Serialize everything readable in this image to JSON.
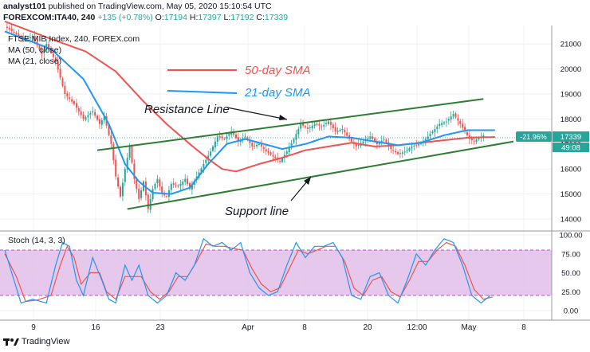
{
  "header": {
    "author": "analyst101",
    "published_text": "published on TradingView.com, May 05, 2020 15:10:54 UTC",
    "symbol": "FOREXCOM:ITA40, 240",
    "change": "+135 (+0.78%)",
    "ohlc": [
      {
        "label": "O:",
        "value": "17194"
      },
      {
        "label": "H:",
        "value": "17397"
      },
      {
        "label": "L:",
        "value": "17192"
      },
      {
        "label": "C:",
        "value": "17339"
      }
    ]
  },
  "legend": {
    "title": "FTSE MIB Index, 240, FOREX.com",
    "ma50": "MA (50, close)",
    "ma21": "MA (21, close)",
    "stoch": "Stoch (14, 3, 3)"
  },
  "annotations": {
    "sma50": "50-day SMA",
    "sma21": "21-day SMA",
    "resistance": "Resistance  Line",
    "support": "Support line"
  },
  "price_badge": {
    "pct": "-21.96%",
    "price": "17339",
    "timer": "49:08"
  },
  "colors": {
    "up": "#26a69a",
    "down": "#ef5350",
    "sma50": "#ef5350",
    "sma21": "#2196f3",
    "trendline": "#2e7d32",
    "stoch_k": "#2196f3",
    "stoch_d": "#ef5350",
    "stoch_band": "#e1bee7",
    "badge": "#26a69a"
  },
  "footer": {
    "brand": "TradingView"
  },
  "chart_data": {
    "type": "candlestick",
    "price_axis": {
      "ticks": [
        14000,
        15000,
        16000,
        17000,
        18000,
        19000,
        20000,
        21000
      ]
    },
    "stoch_axis": {
      "ticks": [
        "0.00",
        "25.00",
        "50.00",
        "75.00",
        "100.00"
      ]
    },
    "time_ticks": [
      "9",
      "16",
      "23",
      "Apr",
      "8",
      "20",
      "12:00",
      "May",
      "8"
    ],
    "price_anchors": [
      [
        0,
        21700
      ],
      [
        8,
        21200
      ],
      [
        12,
        21300
      ],
      [
        16,
        20600
      ],
      [
        18,
        21000
      ],
      [
        22,
        20300
      ],
      [
        26,
        19000
      ],
      [
        30,
        18600
      ],
      [
        34,
        18000
      ],
      [
        38,
        18300
      ],
      [
        41,
        17800
      ],
      [
        43,
        18100
      ],
      [
        46,
        17000
      ],
      [
        48,
        15700
      ],
      [
        50,
        14900
      ],
      [
        52,
        16000
      ],
      [
        54,
        16900
      ],
      [
        56,
        15600
      ],
      [
        58,
        14800
      ],
      [
        60,
        15500
      ],
      [
        62,
        14400
      ],
      [
        64,
        15200
      ],
      [
        66,
        15600
      ],
      [
        68,
        15000
      ],
      [
        70,
        14900
      ],
      [
        72,
        15400
      ],
      [
        75,
        15300
      ],
      [
        78,
        15600
      ],
      [
        80,
        15200
      ],
      [
        83,
        15700
      ],
      [
        86,
        16200
      ],
      [
        89,
        16700
      ],
      [
        92,
        17300
      ],
      [
        95,
        17200
      ],
      [
        98,
        17500
      ],
      [
        101,
        17100
      ],
      [
        104,
        17300
      ],
      [
        107,
        16900
      ],
      [
        110,
        17000
      ],
      [
        113,
        16700
      ],
      [
        116,
        16500
      ],
      [
        119,
        16300
      ],
      [
        122,
        16700
      ],
      [
        125,
        17200
      ],
      [
        128,
        17800
      ],
      [
        131,
        17600
      ],
      [
        134,
        17800
      ],
      [
        137,
        17700
      ],
      [
        140,
        17900
      ],
      [
        143,
        17500
      ],
      [
        146,
        17600
      ],
      [
        149,
        17200
      ],
      [
        152,
        16900
      ],
      [
        155,
        17100
      ],
      [
        158,
        17300
      ],
      [
        161,
        17000
      ],
      [
        164,
        17200
      ],
      [
        167,
        16800
      ],
      [
        170,
        16600
      ],
      [
        173,
        16700
      ],
      [
        176,
        16900
      ],
      [
        179,
        17000
      ],
      [
        182,
        17200
      ],
      [
        185,
        17500
      ],
      [
        188,
        17800
      ],
      [
        191,
        17900
      ],
      [
        194,
        18200
      ],
      [
        197,
        17800
      ],
      [
        199,
        17500
      ],
      [
        201,
        17200
      ],
      [
        203,
        17100
      ],
      [
        205,
        17250
      ],
      [
        207,
        17339
      ]
    ],
    "sma50_anchors": [
      [
        0,
        21900
      ],
      [
        20,
        21200
      ],
      [
        35,
        20700
      ],
      [
        48,
        19900
      ],
      [
        60,
        18700
      ],
      [
        70,
        17800
      ],
      [
        80,
        17000
      ],
      [
        88,
        16400
      ],
      [
        94,
        16000
      ],
      [
        100,
        15900
      ],
      [
        110,
        16200
      ],
      [
        120,
        16450
      ],
      [
        130,
        16750
      ],
      [
        140,
        16900
      ],
      [
        150,
        17050
      ],
      [
        160,
        16900
      ],
      [
        170,
        16950
      ],
      [
        180,
        17050
      ],
      [
        190,
        17150
      ],
      [
        200,
        17250
      ],
      [
        212,
        17280
      ]
    ],
    "sma21_anchors": [
      [
        0,
        21500
      ],
      [
        20,
        20800
      ],
      [
        34,
        19600
      ],
      [
        45,
        17800
      ],
      [
        52,
        16200
      ],
      [
        58,
        15500
      ],
      [
        64,
        15050
      ],
      [
        72,
        15000
      ],
      [
        80,
        15250
      ],
      [
        88,
        16200
      ],
      [
        96,
        17000
      ],
      [
        104,
        17200
      ],
      [
        112,
        17000
      ],
      [
        120,
        16800
      ],
      [
        130,
        17000
      ],
      [
        140,
        17300
      ],
      [
        150,
        17250
      ],
      [
        160,
        17100
      ],
      [
        170,
        16950
      ],
      [
        180,
        17050
      ],
      [
        190,
        17350
      ],
      [
        200,
        17550
      ],
      [
        212,
        17550
      ]
    ],
    "stoch_k_anchors": [
      [
        0,
        80
      ],
      [
        4,
        40
      ],
      [
        7,
        10
      ],
      [
        12,
        15
      ],
      [
        18,
        10
      ],
      [
        22,
        60
      ],
      [
        25,
        90
      ],
      [
        28,
        85
      ],
      [
        31,
        40
      ],
      [
        34,
        20
      ],
      [
        38,
        70
      ],
      [
        42,
        40
      ],
      [
        45,
        15
      ],
      [
        48,
        10
      ],
      [
        52,
        60
      ],
      [
        55,
        40
      ],
      [
        58,
        60
      ],
      [
        62,
        20
      ],
      [
        66,
        10
      ],
      [
        70,
        20
      ],
      [
        74,
        50
      ],
      [
        78,
        40
      ],
      [
        82,
        60
      ],
      [
        86,
        95
      ],
      [
        90,
        85
      ],
      [
        94,
        90
      ],
      [
        98,
        80
      ],
      [
        102,
        90
      ],
      [
        106,
        50
      ],
      [
        110,
        30
      ],
      [
        114,
        20
      ],
      [
        118,
        25
      ],
      [
        122,
        60
      ],
      [
        126,
        90
      ],
      [
        130,
        70
      ],
      [
        134,
        85
      ],
      [
        138,
        85
      ],
      [
        142,
        90
      ],
      [
        146,
        70
      ],
      [
        150,
        20
      ],
      [
        154,
        15
      ],
      [
        158,
        45
      ],
      [
        162,
        50
      ],
      [
        166,
        20
      ],
      [
        170,
        10
      ],
      [
        174,
        40
      ],
      [
        178,
        75
      ],
      [
        182,
        60
      ],
      [
        186,
        80
      ],
      [
        190,
        95
      ],
      [
        194,
        90
      ],
      [
        198,
        60
      ],
      [
        202,
        20
      ],
      [
        206,
        10
      ],
      [
        210,
        20
      ]
    ],
    "stoch_d_anchors": [
      [
        0,
        75
      ],
      [
        5,
        45
      ],
      [
        9,
        12
      ],
      [
        14,
        14
      ],
      [
        20,
        20
      ],
      [
        24,
        60
      ],
      [
        27,
        85
      ],
      [
        30,
        70
      ],
      [
        33,
        35
      ],
      [
        37,
        50
      ],
      [
        41,
        50
      ],
      [
        44,
        25
      ],
      [
        48,
        15
      ],
      [
        52,
        45
      ],
      [
        56,
        45
      ],
      [
        59,
        45
      ],
      [
        63,
        25
      ],
      [
        67,
        15
      ],
      [
        71,
        25
      ],
      [
        75,
        45
      ],
      [
        79,
        45
      ],
      [
        83,
        65
      ],
      [
        87,
        88
      ],
      [
        91,
        85
      ],
      [
        95,
        85
      ],
      [
        99,
        82
      ],
      [
        103,
        80
      ],
      [
        107,
        55
      ],
      [
        111,
        35
      ],
      [
        115,
        25
      ],
      [
        119,
        30
      ],
      [
        123,
        55
      ],
      [
        127,
        80
      ],
      [
        131,
        75
      ],
      [
        135,
        80
      ],
      [
        139,
        85
      ],
      [
        143,
        85
      ],
      [
        147,
        65
      ],
      [
        151,
        30
      ],
      [
        155,
        20
      ],
      [
        159,
        40
      ],
      [
        163,
        45
      ],
      [
        167,
        25
      ],
      [
        171,
        18
      ],
      [
        175,
        40
      ],
      [
        179,
        65
      ],
      [
        183,
        65
      ],
      [
        187,
        80
      ],
      [
        191,
        90
      ],
      [
        195,
        85
      ],
      [
        199,
        60
      ],
      [
        203,
        28
      ],
      [
        207,
        15
      ],
      [
        211,
        18
      ]
    ],
    "resistance_line": [
      [
        40,
        16750
      ],
      [
        207,
        18800
      ]
    ],
    "support_line": [
      [
        53,
        14400
      ],
      [
        220,
        17100
      ]
    ]
  }
}
